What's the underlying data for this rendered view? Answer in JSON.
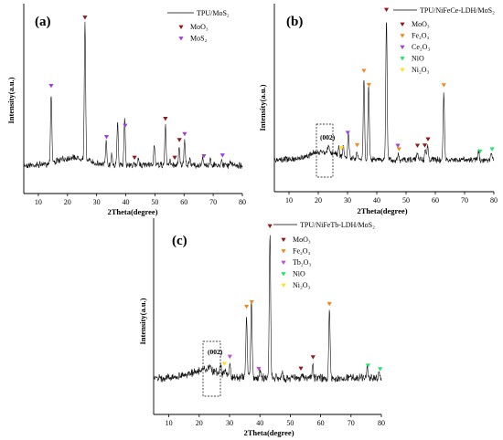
{
  "chart_data": [
    {
      "type": "line",
      "panel_label": "(a)",
      "xlabel": "2Theta(degree)",
      "ylabel": "Intensity(a.u.)",
      "xlim": [
        5,
        80
      ],
      "xticks": [
        10,
        20,
        30,
        40,
        50,
        60,
        70,
        80
      ],
      "series_name": "TPU/MoS₂",
      "peaks": [
        [
          14.4,
          0.5
        ],
        [
          26.0,
          0.97
        ],
        [
          33.3,
          0.16
        ],
        [
          35.2,
          0.08
        ],
        [
          37.2,
          0.3
        ],
        [
          39.6,
          0.34
        ],
        [
          44.3,
          0.06
        ],
        [
          49.8,
          0.15
        ],
        [
          53.6,
          0.28
        ],
        [
          55.2,
          0.04
        ],
        [
          58.3,
          0.14
        ],
        [
          60.2,
          0.17
        ],
        [
          62.0,
          0.06
        ],
        [
          66.4,
          0.05
        ],
        [
          69.0,
          0.05
        ],
        [
          72.9,
          0.04
        ],
        [
          76.0,
          0.03
        ]
      ],
      "markers": [
        {
          "x": 14.4,
          "phase": 1
        },
        {
          "x": 26.0,
          "phase": 0
        },
        {
          "x": 33.4,
          "phase": 1
        },
        {
          "x": 39.8,
          "phase": 1
        },
        {
          "x": 43.0,
          "phase": 0
        },
        {
          "x": 53.6,
          "phase": 0
        },
        {
          "x": 56.8,
          "phase": 0
        },
        {
          "x": 58.4,
          "phase": 0
        },
        {
          "x": 60.2,
          "phase": 1
        },
        {
          "x": 66.8,
          "phase": 1
        },
        {
          "x": 73.2,
          "phase": 1
        }
      ],
      "legend": [
        {
          "label": "MoO₃",
          "color": "#8b1a1a"
        },
        {
          "label": "MoS₂",
          "color": "#a040d0"
        }
      ]
    },
    {
      "type": "line",
      "panel_label": "(b)",
      "xlabel": "2Theta(degree)",
      "ylabel": "Intensity(a.u.)",
      "xlim": [
        5,
        80
      ],
      "xticks": [
        10,
        20,
        30,
        40,
        50,
        60,
        70,
        80
      ],
      "series_name": "TPU/NiFeCe-LDH/MoS₂",
      "annotation": "(002)",
      "peaks": [
        [
          23.5,
          0.05
        ],
        [
          27.0,
          0.06
        ],
        [
          28.6,
          0.08
        ],
        [
          30.3,
          0.18
        ],
        [
          33.2,
          0.05
        ],
        [
          35.6,
          0.57
        ],
        [
          37.2,
          0.52
        ],
        [
          43.3,
          1.0
        ],
        [
          47.3,
          0.05
        ],
        [
          53.8,
          0.05
        ],
        [
          56.6,
          0.07
        ],
        [
          57.4,
          0.1
        ],
        [
          62.9,
          0.47
        ],
        [
          74.8,
          0.06
        ],
        [
          79.1,
          0.05
        ]
      ],
      "markers": [
        {
          "x": 28.0,
          "phase": 4
        },
        {
          "x": 30.1,
          "phase": 2
        },
        {
          "x": 33.3,
          "phase": 1
        },
        {
          "x": 35.6,
          "phase": 1
        },
        {
          "x": 37.3,
          "phase": 1
        },
        {
          "x": 43.3,
          "phase": 0
        },
        {
          "x": 47.2,
          "phase": 2
        },
        {
          "x": 47.6,
          "phase": 1
        },
        {
          "x": 53.9,
          "phase": 0
        },
        {
          "x": 56.4,
          "phase": 0
        },
        {
          "x": 57.5,
          "phase": 0
        },
        {
          "x": 62.9,
          "phase": 1
        },
        {
          "x": 75.3,
          "phase": 3
        },
        {
          "x": 79.4,
          "phase": 3
        }
      ],
      "legend": [
        {
          "label": "MoO₃",
          "color": "#8b1a1a"
        },
        {
          "label": "Fe₂O₃",
          "color": "#f08a1c"
        },
        {
          "label": "Ce₂O₃",
          "color": "#a040d0"
        },
        {
          "label": "NiO",
          "color": "#22e26a"
        },
        {
          "label": "Ni₂O₃",
          "color": "#ffe020"
        }
      ]
    },
    {
      "type": "line",
      "panel_label": "(c)",
      "xlabel": "2Theta(degree)",
      "ylabel": "Intensity(a.u.)",
      "xlim": [
        5,
        80
      ],
      "xticks": [
        10,
        20,
        30,
        40,
        50,
        60,
        70,
        80
      ],
      "series_name": "TPU/NiFeTb-LDH/MoS₂",
      "annotation": "(002)",
      "peaks": [
        [
          23.5,
          0.05
        ],
        [
          27.0,
          0.06
        ],
        [
          28.6,
          0.05
        ],
        [
          30.1,
          0.08
        ],
        [
          35.6,
          0.44
        ],
        [
          37.2,
          0.52
        ],
        [
          40.0,
          0.05
        ],
        [
          43.3,
          1.0
        ],
        [
          47.3,
          0.04
        ],
        [
          53.8,
          0.03
        ],
        [
          57.4,
          0.1
        ],
        [
          62.9,
          0.46
        ],
        [
          75.3,
          0.08
        ],
        [
          79.2,
          0.04
        ]
      ],
      "markers": [
        {
          "x": 28.3,
          "phase": 4
        },
        {
          "x": 30.1,
          "phase": 2
        },
        {
          "x": 35.6,
          "phase": 1
        },
        {
          "x": 37.3,
          "phase": 1
        },
        {
          "x": 39.6,
          "phase": 2
        },
        {
          "x": 43.3,
          "phase": 0
        },
        {
          "x": 53.5,
          "phase": 0
        },
        {
          "x": 57.5,
          "phase": 0
        },
        {
          "x": 62.9,
          "phase": 1
        },
        {
          "x": 75.6,
          "phase": 3
        },
        {
          "x": 79.6,
          "phase": 3
        }
      ],
      "legend": [
        {
          "label": "MoO₃",
          "color": "#8b1a1a"
        },
        {
          "label": "Fe₂O₃",
          "color": "#f08a1c"
        },
        {
          "label": "Tb₂O₃",
          "color": "#c050d0"
        },
        {
          "label": "NiO",
          "color": "#22e26a"
        },
        {
          "label": "Ni₂O₃",
          "color": "#ffe020"
        }
      ]
    }
  ]
}
